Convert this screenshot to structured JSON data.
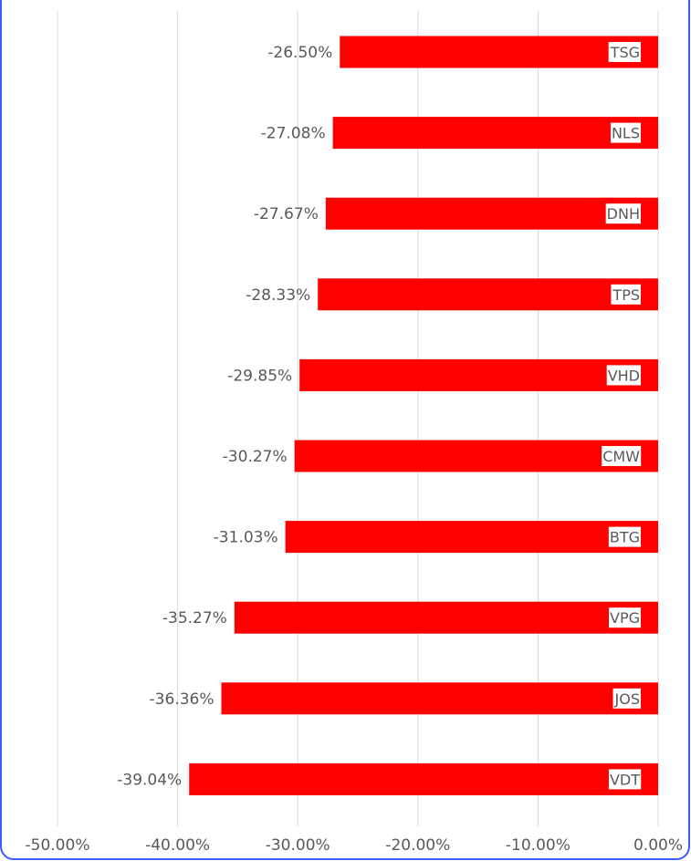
{
  "chart_data": {
    "type": "bar",
    "orientation": "horizontal",
    "categories": [
      "TSG",
      "NLS",
      "DNH",
      "TPS",
      "VHD",
      "CMW",
      "BTG",
      "VPG",
      "JOS",
      "VDT"
    ],
    "values": [
      -26.5,
      -27.08,
      -27.67,
      -28.33,
      -29.85,
      -30.27,
      -31.03,
      -35.27,
      -36.36,
      -39.04
    ],
    "value_labels": [
      "-26.50%",
      "-27.08%",
      "-27.67%",
      "-28.33%",
      "-29.85%",
      "-30.27%",
      "-31.03%",
      "-35.27%",
      "-36.36%",
      "-39.04%"
    ],
    "xlim": [
      -50,
      0
    ],
    "x_ticks": [
      -50,
      -40,
      -30,
      -20,
      -10,
      0
    ],
    "x_tick_labels": [
      "-50.00%",
      "-40.00%",
      "-30.00%",
      "-20.00%",
      "-10.00%",
      "0.00%"
    ],
    "title": "",
    "xlabel": "",
    "ylabel": "",
    "grid": "vertical",
    "legend": "none",
    "bar_color": "#ff0000",
    "grid_color": "#d9d9d9",
    "text_color": "#595959",
    "frame_color": "#3d5afe"
  }
}
